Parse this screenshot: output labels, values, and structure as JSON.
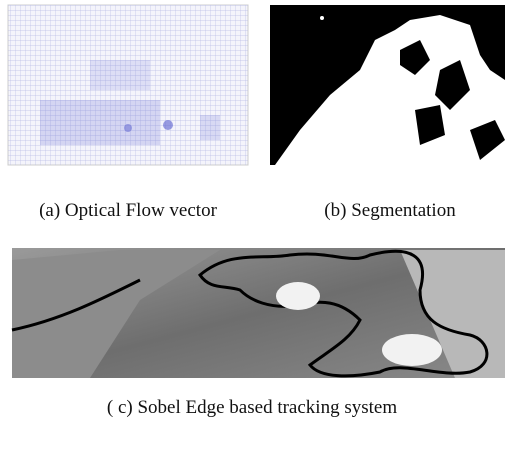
{
  "figures": [
    {
      "caption": "(a) Optical Flow vector"
    },
    {
      "caption": "(b) Segmentation"
    },
    {
      "caption": "( c) Sobel Edge based tracking system"
    }
  ]
}
